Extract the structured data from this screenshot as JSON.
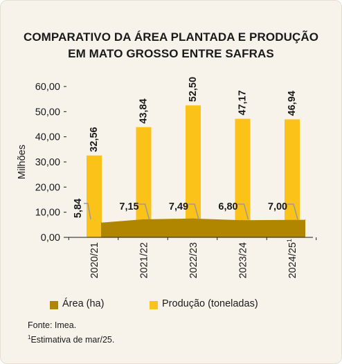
{
  "colors": {
    "area": "#b08600",
    "producao": "#fbc21a",
    "background": "#f7f3ea",
    "text": "#1a1a1a",
    "connector": "#9a9a9a"
  },
  "chart_data": {
    "type": "bar",
    "title_lines": [
      "COMPARATIVO DA ÁREA PLANTADA E PRODUÇÃO",
      "EM MATO GROSSO ENTRE SAFRAS"
    ],
    "ylabel": "Milhões",
    "ylim": [
      0,
      60
    ],
    "yticks": [
      "0,00",
      "10,00",
      "20,00",
      "30,00",
      "40,00",
      "50,00",
      "60,00"
    ],
    "categories": [
      "2020/21",
      "2021/22",
      "2022/23",
      "2023/24",
      "2024/25"
    ],
    "category_note_marker": "1",
    "series": [
      {
        "name": "Área (ha)",
        "chart_type": "area",
        "values": [
          5.84,
          7.15,
          7.49,
          6.8,
          7.0
        ],
        "labels": [
          "5,84",
          "7,15",
          "7,49",
          "6,80",
          "7,00"
        ]
      },
      {
        "name": "Produção (toneladas)",
        "chart_type": "bar",
        "values": [
          32.56,
          43.84,
          52.5,
          47.17,
          46.94
        ],
        "labels": [
          "32,56",
          "43,84",
          "52,50",
          "47,17",
          "46,94"
        ]
      }
    ],
    "legend_position": "bottom"
  },
  "notes": {
    "source": "Fonte: Imea.",
    "footnote_marker": "1",
    "footnote_text": "Estimativa de mar/25."
  }
}
